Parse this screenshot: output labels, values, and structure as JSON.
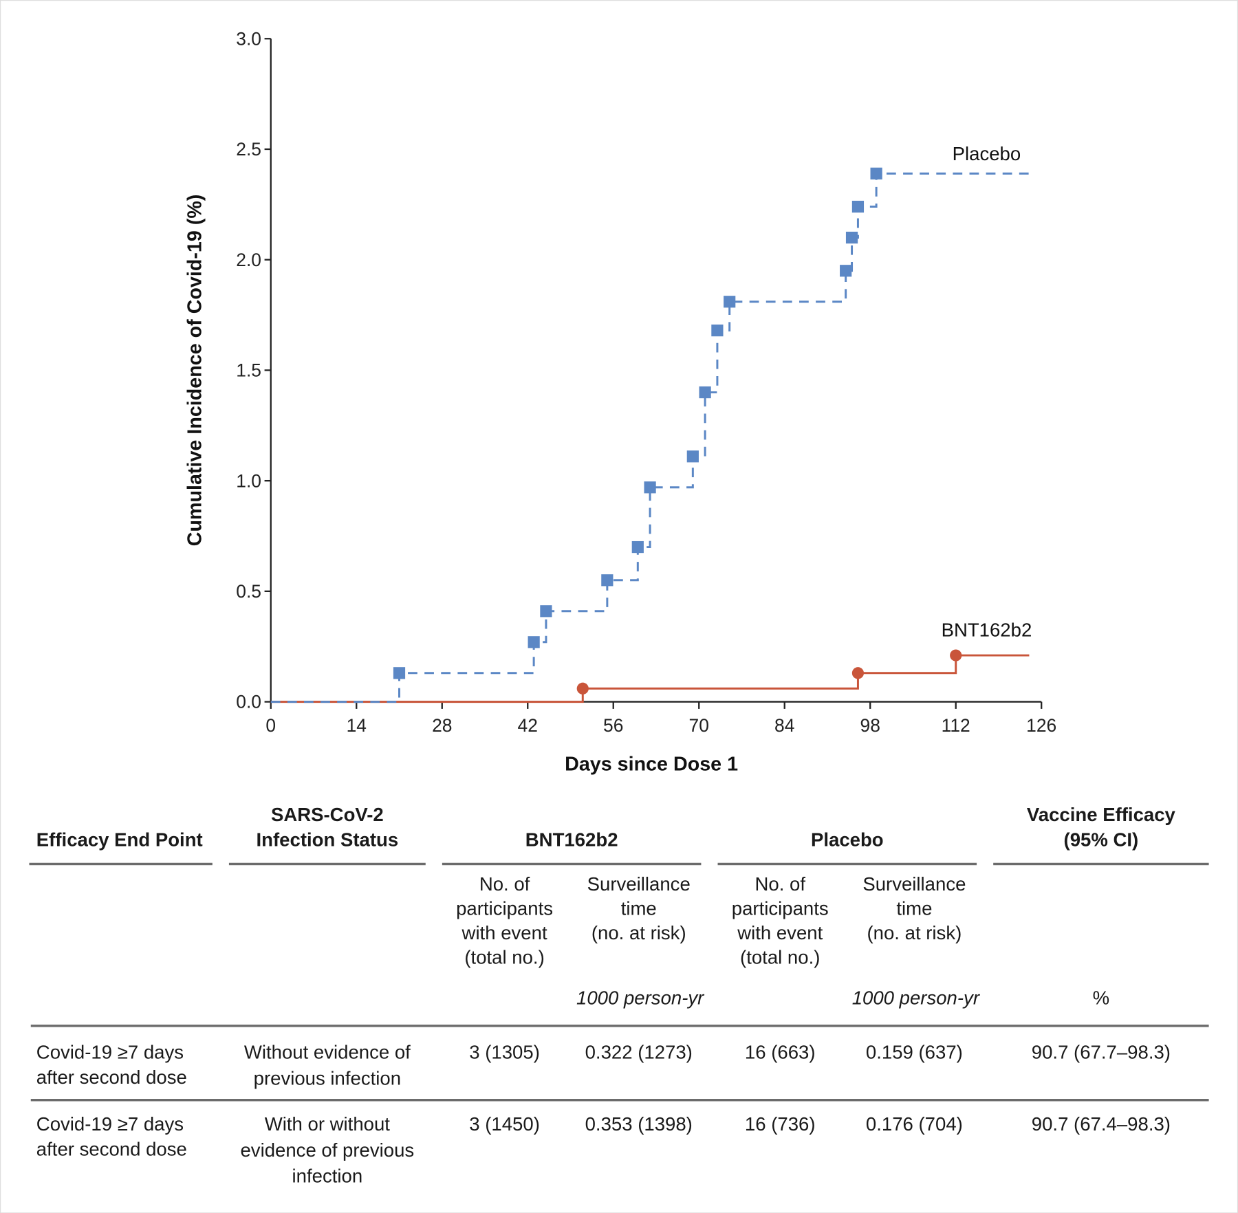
{
  "chart_data": {
    "type": "line",
    "xlabel": "Days since Dose 1",
    "ylabel": "Cumulative Incidence of Covid-19 (%)",
    "xlim": [
      0,
      126
    ],
    "ylim": [
      0,
      3.0
    ],
    "xticks": [
      "0",
      "14",
      "28",
      "42",
      "56",
      "70",
      "84",
      "98",
      "112",
      "126"
    ],
    "yticks": [
      "0.0",
      "0.5",
      "1.0",
      "1.5",
      "2.0",
      "2.5",
      "3.0"
    ],
    "grid": false,
    "series": [
      {
        "name": "Placebo",
        "color": "#5b87c5",
        "style": "dashed-step",
        "marker": "square",
        "x": [
          21,
          43,
          45,
          55,
          60,
          62,
          69,
          71,
          73,
          75,
          94,
          95,
          96,
          99
        ],
        "y": [
          0.13,
          0.27,
          0.41,
          0.55,
          0.7,
          0.97,
          1.11,
          1.4,
          1.68,
          1.81,
          1.95,
          2.1,
          2.24,
          2.39
        ],
        "end_x": 124
      },
      {
        "name": "BNT162b2",
        "color": "#c9553a",
        "style": "solid-step",
        "marker": "circle",
        "x": [
          51,
          96,
          112
        ],
        "y": [
          0.06,
          0.13,
          0.21
        ],
        "end_x": 124
      }
    ]
  },
  "table": {
    "headers": {
      "endpoint": [
        "Efficacy End Point"
      ],
      "status": [
        "SARS-CoV-2",
        "Infection Status"
      ],
      "bnt": "BNT162b2",
      "placebo": "Placebo",
      "ve": [
        "Vaccine Efficacy",
        "(95% CI)"
      ]
    },
    "subheaders": {
      "participants": [
        "No. of",
        "participants",
        "with event",
        "(total no.)"
      ],
      "surveillance": [
        "Surveillance",
        "time",
        "(no. at risk)"
      ],
      "unit_time": "1000 person-yr",
      "unit_ve": "%"
    },
    "rows": [
      {
        "endpoint": [
          "Covid-19 ≥7 days",
          "after second dose"
        ],
        "status": [
          "Without evidence of",
          "previous infection"
        ],
        "bnt_events": "3 (1305)",
        "bnt_time": "0.322 (1273)",
        "pl_events": "16 (663)",
        "pl_time": "0.159 (637)",
        "ve": "90.7 (67.7–98.3)"
      },
      {
        "endpoint": [
          "Covid-19 ≥7 days",
          "after second dose"
        ],
        "status": [
          "With or without",
          "evidence of previous",
          "infection"
        ],
        "bnt_events": "3 (1450)",
        "bnt_time": "0.353 (1398)",
        "pl_events": "16 (736)",
        "pl_time": "0.176 (704)",
        "ve": "90.7 (67.4–98.3)"
      }
    ]
  }
}
